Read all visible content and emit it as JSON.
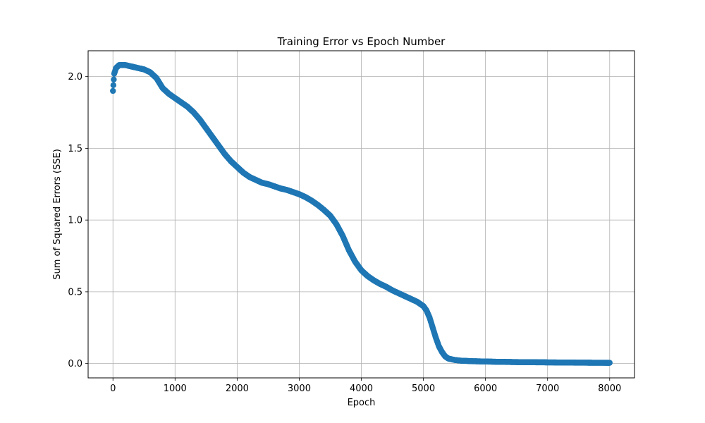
{
  "chart_data": {
    "type": "line",
    "title": "Training Error vs Epoch Number",
    "xlabel": "Epoch",
    "ylabel": "Sum of Squared Errors (SSE)",
    "xlim": [
      -400,
      8400
    ],
    "ylim": [
      -0.1,
      2.18
    ],
    "xticks": [
      0,
      1000,
      2000,
      3000,
      4000,
      5000,
      6000,
      7000,
      8000
    ],
    "xtick_labels": [
      "0",
      "1000",
      "2000",
      "3000",
      "4000",
      "5000",
      "6000",
      "7000",
      "8000"
    ],
    "yticks": [
      0.0,
      0.5,
      1.0,
      1.5,
      2.0
    ],
    "ytick_labels": [
      "0.0",
      "0.5",
      "1.0",
      "1.5",
      "2.0"
    ],
    "grid": true,
    "marker": "circle",
    "color": "#1f77b4",
    "series": [
      {
        "x": [
          0,
          20,
          50,
          100,
          150,
          200,
          300,
          400,
          500,
          600,
          700,
          800,
          900,
          1000,
          1100,
          1200,
          1300,
          1400,
          1500,
          1600,
          1700,
          1800,
          1900,
          2000,
          2100,
          2200,
          2300,
          2400,
          2500,
          2600,
          2700,
          2800,
          2900,
          3000,
          3100,
          3200,
          3300,
          3400,
          3500,
          3600,
          3700,
          3800,
          3900,
          4000,
          4100,
          4200,
          4300,
          4400,
          4500,
          4600,
          4700,
          4800,
          4900,
          5000,
          5050,
          5100,
          5150,
          5200,
          5250,
          5300,
          5350,
          5400,
          5450,
          5500,
          5600,
          5700,
          5800,
          6000,
          6200,
          6500,
          7000,
          7500,
          8000
        ],
        "y": [
          1.9,
          2.02,
          2.06,
          2.08,
          2.08,
          2.08,
          2.07,
          2.06,
          2.05,
          2.03,
          1.99,
          1.92,
          1.88,
          1.85,
          1.82,
          1.79,
          1.75,
          1.7,
          1.64,
          1.58,
          1.52,
          1.46,
          1.41,
          1.37,
          1.33,
          1.3,
          1.28,
          1.26,
          1.25,
          1.235,
          1.22,
          1.21,
          1.195,
          1.18,
          1.16,
          1.135,
          1.105,
          1.07,
          1.03,
          0.97,
          0.89,
          0.79,
          0.71,
          0.65,
          0.61,
          0.58,
          0.555,
          0.535,
          0.51,
          0.49,
          0.47,
          0.45,
          0.43,
          0.4,
          0.37,
          0.32,
          0.25,
          0.18,
          0.12,
          0.08,
          0.05,
          0.035,
          0.03,
          0.025,
          0.02,
          0.018,
          0.016,
          0.014,
          0.012,
          0.01,
          0.008,
          0.006,
          0.005
        ]
      }
    ]
  }
}
